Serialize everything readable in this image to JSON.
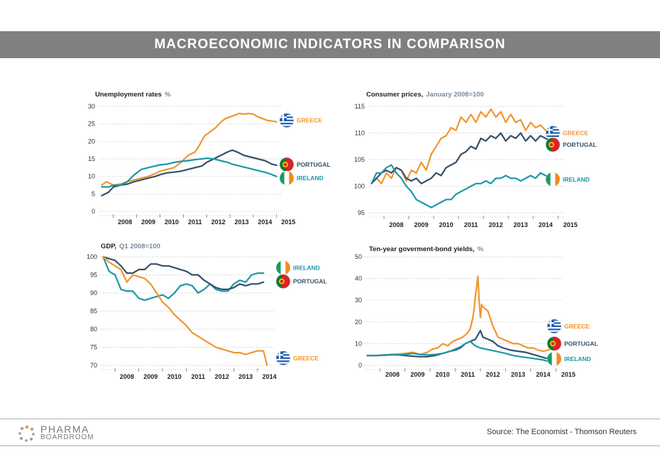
{
  "banner": {
    "title": "MACROECONOMIC INDICATORS IN COMPARISON"
  },
  "footer": {
    "logo_line1": "PHARMA",
    "logo_line2": "BOARDROOM",
    "source": "Source: The Economist - Thomson Reuters"
  },
  "colors": {
    "greece": "#f0962e",
    "portugal": "#36506a",
    "ireland": "#1b98a8",
    "banner": "#808080",
    "subtitle": "#7a8a9c",
    "grid": "#aaaaaa"
  },
  "flag_icons": {
    "greece": "greece-flag-icon",
    "portugal": "portugal-flag-icon",
    "ireland": "ireland-flag-icon"
  },
  "chart_data": [
    {
      "type": "line",
      "title": "Unemployment rates",
      "subtitle": "%",
      "xlim": [
        2007.4,
        2015.25
      ],
      "ylim": [
        0,
        30
      ],
      "yticks": [
        0,
        5,
        10,
        15,
        20,
        25,
        30
      ],
      "xticks": [
        "2008",
        "2009",
        "2010",
        "2011",
        "2012",
        "2013",
        "2014",
        "2015"
      ],
      "grid": true,
      "series": [
        {
          "name": "GREECE",
          "key": "greece",
          "label_y": 26,
          "x": [
            2007.5,
            2007.7,
            2008.0,
            2008.3,
            2008.6,
            2008.9,
            2009.2,
            2009.5,
            2009.8,
            2010.0,
            2010.3,
            2010.6,
            2010.9,
            2011.2,
            2011.5,
            2011.7,
            2011.9,
            2012.2,
            2012.4,
            2012.6,
            2012.8,
            2013.0,
            2013.2,
            2013.4,
            2013.6,
            2013.8,
            2014.0,
            2014.2,
            2014.4,
            2014.6,
            2014.8,
            2015.0
          ],
          "values": [
            7.5,
            8.5,
            7.5,
            7.8,
            8.5,
            9.0,
            9.5,
            10.0,
            10.8,
            11.5,
            12.0,
            12.5,
            14.0,
            16.0,
            17.0,
            19.0,
            21.5,
            23.0,
            24.0,
            25.5,
            26.5,
            27.0,
            27.5,
            28.0,
            27.8,
            28.0,
            27.8,
            27.0,
            26.5,
            26.0,
            25.8,
            25.6
          ]
        },
        {
          "name": "PORTUGAL",
          "key": "portugal",
          "label_y": 13.4,
          "x": [
            2007.5,
            2007.8,
            2008.0,
            2008.3,
            2008.6,
            2008.9,
            2009.2,
            2009.5,
            2009.8,
            2010.0,
            2010.3,
            2010.6,
            2010.9,
            2011.2,
            2011.5,
            2011.8,
            2012.0,
            2012.3,
            2012.6,
            2012.9,
            2013.1,
            2013.3,
            2013.6,
            2013.9,
            2014.2,
            2014.5,
            2014.8,
            2015.0
          ],
          "values": [
            4.5,
            5.5,
            7.0,
            7.5,
            7.8,
            8.5,
            9.0,
            9.5,
            10.0,
            10.5,
            11.0,
            11.2,
            11.5,
            12.0,
            12.5,
            13.0,
            14.0,
            15.0,
            16.0,
            17.0,
            17.5,
            17.0,
            16.0,
            15.5,
            15.0,
            14.5,
            13.5,
            13.2
          ]
        },
        {
          "name": "IRELAND",
          "key": "ireland",
          "label_y": 9.5,
          "x": [
            2007.5,
            2007.8,
            2008.0,
            2008.3,
            2008.6,
            2008.9,
            2009.2,
            2009.5,
            2009.8,
            2010.0,
            2010.3,
            2010.6,
            2010.9,
            2011.2,
            2011.5,
            2011.8,
            2012.0,
            2012.3,
            2012.6,
            2012.9,
            2013.1,
            2013.4,
            2013.7,
            2014.0,
            2014.3,
            2014.6,
            2014.8,
            2015.0
          ],
          "values": [
            7.0,
            7.0,
            7.5,
            7.5,
            8.5,
            10.5,
            12.0,
            12.5,
            13.0,
            13.3,
            13.5,
            14.0,
            14.3,
            14.5,
            14.8,
            15.0,
            15.2,
            15.0,
            14.5,
            14.0,
            13.5,
            13.0,
            12.5,
            12.0,
            11.5,
            11.0,
            10.5,
            10.0
          ]
        }
      ]
    },
    {
      "type": "line",
      "title": "Consumer prices,",
      "subtitle": "January 2008=100",
      "xlim": [
        2007.4,
        2015.25
      ],
      "ylim": [
        95,
        115
      ],
      "yticks": [
        95,
        100,
        105,
        110,
        115
      ],
      "xticks": [
        "2008",
        "2009",
        "2010",
        "2011",
        "2012",
        "2013",
        "2014",
        "2015"
      ],
      "grid": true,
      "series": [
        {
          "name": "GREECE",
          "key": "greece",
          "label_y": 110,
          "x": [
            2007.5,
            2007.7,
            2007.9,
            2008.1,
            2008.3,
            2008.5,
            2008.7,
            2008.9,
            2009.1,
            2009.3,
            2009.5,
            2009.7,
            2009.9,
            2010.1,
            2010.3,
            2010.5,
            2010.7,
            2010.9,
            2011.1,
            2011.3,
            2011.5,
            2011.7,
            2011.9,
            2012.1,
            2012.3,
            2012.5,
            2012.7,
            2012.9,
            2013.1,
            2013.3,
            2013.5,
            2013.7,
            2013.9,
            2014.1,
            2014.3,
            2014.5,
            2014.7,
            2014.9
          ],
          "values": [
            100.5,
            101.5,
            100.5,
            102.5,
            101.5,
            103.5,
            103.0,
            101.0,
            103.0,
            102.5,
            104.5,
            103.0,
            106.0,
            107.5,
            109.0,
            109.5,
            111.0,
            110.5,
            113.0,
            112.0,
            113.5,
            112.0,
            114.0,
            113.0,
            114.5,
            113.0,
            114.0,
            112.0,
            113.5,
            112.0,
            112.5,
            110.5,
            112.0,
            111.0,
            111.5,
            110.5,
            111.0,
            109.5
          ]
        },
        {
          "name": "PORTUGAL",
          "key": "portugal",
          "label_y": 107.8,
          "x": [
            2007.5,
            2007.7,
            2007.9,
            2008.1,
            2008.3,
            2008.5,
            2008.7,
            2008.9,
            2009.1,
            2009.3,
            2009.5,
            2009.7,
            2009.9,
            2010.1,
            2010.3,
            2010.5,
            2010.7,
            2010.9,
            2011.1,
            2011.3,
            2011.5,
            2011.7,
            2011.9,
            2012.1,
            2012.3,
            2012.5,
            2012.7,
            2012.9,
            2013.1,
            2013.3,
            2013.5,
            2013.7,
            2013.9,
            2014.1,
            2014.3,
            2014.5,
            2014.7,
            2014.9
          ],
          "values": [
            100.5,
            101.5,
            102.5,
            103.0,
            102.5,
            103.5,
            103.0,
            101.5,
            101.0,
            101.5,
            100.5,
            101.0,
            101.5,
            102.5,
            102.0,
            103.5,
            104.0,
            104.5,
            106.0,
            106.5,
            107.5,
            107.0,
            109.0,
            108.5,
            109.5,
            109.0,
            110.0,
            108.5,
            109.5,
            109.0,
            110.0,
            108.5,
            109.5,
            108.5,
            109.5,
            109.0,
            108.5,
            108.0
          ]
        },
        {
          "name": "IRELAND",
          "key": "ireland",
          "label_y": 101.3,
          "x": [
            2007.5,
            2007.7,
            2007.9,
            2008.1,
            2008.3,
            2008.5,
            2008.7,
            2008.9,
            2009.1,
            2009.3,
            2009.5,
            2009.7,
            2009.9,
            2010.1,
            2010.3,
            2010.5,
            2010.7,
            2010.9,
            2011.1,
            2011.3,
            2011.5,
            2011.7,
            2011.9,
            2012.1,
            2012.3,
            2012.5,
            2012.7,
            2012.9,
            2013.1,
            2013.3,
            2013.5,
            2013.7,
            2013.9,
            2014.1,
            2014.3,
            2014.5,
            2014.7,
            2014.9
          ],
          "values": [
            100.5,
            102.5,
            102.5,
            103.5,
            104.0,
            102.5,
            101.5,
            100.0,
            99.0,
            97.5,
            97.0,
            96.5,
            96.0,
            96.5,
            97.0,
            97.5,
            97.5,
            98.5,
            99.0,
            99.5,
            100.0,
            100.5,
            100.5,
            101.0,
            100.5,
            101.5,
            101.5,
            102.0,
            101.5,
            101.5,
            101.0,
            101.5,
            102.0,
            101.5,
            102.5,
            102.0,
            101.5,
            101.5
          ]
        }
      ]
    },
    {
      "type": "line",
      "title": "GDP,",
      "subtitle": "Q1 2008=100",
      "xlim": [
        2007.4,
        2014.75
      ],
      "ylim": [
        70,
        100
      ],
      "yticks": [
        70,
        75,
        80,
        85,
        90,
        95,
        100
      ],
      "xticks": [
        "2008",
        "2009",
        "2010",
        "2011",
        "2012",
        "2013",
        "2014"
      ],
      "grid": true,
      "series": [
        {
          "name": "IRELAND",
          "key": "ireland",
          "label_y": 97,
          "x": [
            2007.5,
            2007.75,
            2008.0,
            2008.25,
            2008.5,
            2008.75,
            2009.0,
            2009.25,
            2009.5,
            2009.75,
            2010.0,
            2010.25,
            2010.5,
            2010.75,
            2011.0,
            2011.25,
            2011.5,
            2011.75,
            2012.0,
            2012.25,
            2012.5,
            2012.75,
            2013.0,
            2013.25,
            2013.5,
            2013.75,
            2014.0,
            2014.25
          ],
          "values": [
            100.0,
            96.0,
            95.0,
            91.0,
            90.5,
            90.5,
            88.5,
            88.0,
            88.5,
            89.0,
            89.5,
            88.5,
            90.0,
            92.0,
            92.5,
            92.0,
            90.0,
            91.0,
            92.5,
            91.0,
            90.5,
            90.5,
            92.5,
            93.5,
            93.0,
            95.0,
            95.5,
            95.5
          ]
        },
        {
          "name": "PORTUGAL",
          "key": "portugal",
          "label_y": 93.2,
          "x": [
            2007.5,
            2007.75,
            2008.0,
            2008.25,
            2008.5,
            2008.75,
            2009.0,
            2009.25,
            2009.5,
            2009.75,
            2010.0,
            2010.25,
            2010.5,
            2010.75,
            2011.0,
            2011.25,
            2011.5,
            2011.75,
            2012.0,
            2012.25,
            2012.5,
            2012.75,
            2013.0,
            2013.25,
            2013.5,
            2013.75,
            2014.0,
            2014.25
          ],
          "values": [
            100.0,
            99.5,
            99.0,
            97.5,
            95.5,
            95.5,
            96.5,
            96.5,
            98.0,
            98.0,
            97.5,
            97.5,
            97.0,
            96.5,
            96.0,
            95.0,
            95.0,
            93.5,
            92.5,
            91.5,
            91.0,
            91.0,
            91.5,
            92.5,
            92.0,
            92.5,
            92.5,
            93.0
          ]
        },
        {
          "name": "GREECE",
          "key": "greece",
          "label_y": 72,
          "x": [
            2007.5,
            2007.75,
            2008.0,
            2008.25,
            2008.5,
            2008.75,
            2009.0,
            2009.25,
            2009.5,
            2009.75,
            2010.0,
            2010.25,
            2010.5,
            2010.75,
            2011.0,
            2011.25,
            2011.5,
            2011.75,
            2012.0,
            2012.25,
            2012.5,
            2012.75,
            2013.0,
            2013.25,
            2013.5,
            2013.75,
            2014.0,
            2014.25,
            2014.4
          ],
          "values": [
            100.0,
            98.5,
            97.5,
            96.5,
            93.0,
            95.0,
            94.5,
            94.0,
            92.5,
            90.0,
            87.5,
            86.0,
            84.0,
            82.5,
            81.0,
            79.0,
            78.0,
            77.0,
            76.0,
            75.0,
            74.5,
            74.0,
            73.5,
            73.5,
            73.0,
            73.5,
            74.0,
            74.0,
            70.0
          ]
        }
      ]
    },
    {
      "type": "line",
      "title": "Ten-year goverment-bond yields,",
      "subtitle": "%",
      "xlim": [
        2007.4,
        2015.25
      ],
      "ylim": [
        0,
        50
      ],
      "yticks": [
        0,
        10,
        20,
        30,
        40,
        50
      ],
      "xticks": [
        "2008",
        "2009",
        "2010",
        "2011",
        "2012",
        "2013",
        "2014",
        "2015"
      ],
      "grid": true,
      "series": [
        {
          "name": "GREECE",
          "key": "greece",
          "label_y": 18,
          "x": [
            2007.5,
            2007.8,
            2008.1,
            2008.4,
            2008.7,
            2009.0,
            2009.3,
            2009.6,
            2009.9,
            2010.1,
            2010.3,
            2010.5,
            2010.7,
            2010.9,
            2011.1,
            2011.3,
            2011.5,
            2011.6,
            2011.7,
            2011.75,
            2011.8,
            2011.85,
            2011.9,
            2011.95,
            2012.0,
            2012.05,
            2012.1,
            2012.2,
            2012.3,
            2012.5,
            2012.7,
            2012.9,
            2013.1,
            2013.3,
            2013.5,
            2013.7,
            2013.9,
            2014.1,
            2014.3,
            2014.5,
            2014.7,
            2014.9,
            2015.0
          ],
          "values": [
            4.5,
            4.5,
            4.8,
            5.0,
            5.2,
            5.5,
            6.0,
            5.0,
            6.0,
            7.5,
            8.0,
            10.0,
            9.0,
            11.0,
            12.0,
            13.0,
            15.0,
            17.0,
            22.0,
            26.0,
            32.0,
            36.0,
            41.0,
            30.0,
            22.0,
            28.0,
            27.0,
            26.0,
            25.0,
            18.0,
            13.0,
            12.0,
            11.0,
            10.0,
            10.0,
            9.0,
            8.0,
            8.0,
            7.0,
            6.5,
            7.0,
            8.5,
            9.5
          ]
        },
        {
          "name": "PORTUGAL",
          "key": "portugal",
          "label_y": 10,
          "x": [
            2007.5,
            2007.8,
            2008.1,
            2008.4,
            2008.7,
            2009.0,
            2009.3,
            2009.6,
            2009.9,
            2010.2,
            2010.5,
            2010.8,
            2011.0,
            2011.2,
            2011.4,
            2011.6,
            2011.8,
            2011.9,
            2012.0,
            2012.1,
            2012.3,
            2012.5,
            2012.7,
            2012.9,
            2013.2,
            2013.5,
            2013.8,
            2014.1,
            2014.4,
            2014.7,
            2015.0
          ],
          "values": [
            4.5,
            4.5,
            4.6,
            4.8,
            4.8,
            4.5,
            4.2,
            4.0,
            4.0,
            4.5,
            5.5,
            6.5,
            7.0,
            8.0,
            10.0,
            11.0,
            12.0,
            14.0,
            16.0,
            13.0,
            12.0,
            11.0,
            9.0,
            8.0,
            7.0,
            6.5,
            6.0,
            5.0,
            4.0,
            3.0,
            2.5
          ]
        },
        {
          "name": "IRELAND",
          "key": "ireland",
          "label_y": 3,
          "x": [
            2007.5,
            2007.8,
            2008.1,
            2008.4,
            2008.7,
            2009.0,
            2009.3,
            2009.6,
            2009.9,
            2010.2,
            2010.5,
            2010.8,
            2011.0,
            2011.2,
            2011.4,
            2011.6,
            2011.8,
            2012.0,
            2012.2,
            2012.4,
            2012.6,
            2012.8,
            2013.0,
            2013.3,
            2013.6,
            2013.9,
            2014.2,
            2014.5,
            2014.8,
            2015.0
          ],
          "values": [
            4.5,
            4.5,
            4.6,
            4.8,
            4.8,
            5.0,
            5.5,
            5.0,
            4.8,
            5.0,
            5.5,
            6.5,
            7.5,
            8.5,
            10.0,
            11.0,
            9.0,
            8.0,
            7.5,
            7.0,
            6.5,
            6.0,
            5.5,
            4.5,
            4.0,
            3.5,
            3.0,
            2.5,
            1.5,
            1.0
          ]
        }
      ]
    }
  ]
}
